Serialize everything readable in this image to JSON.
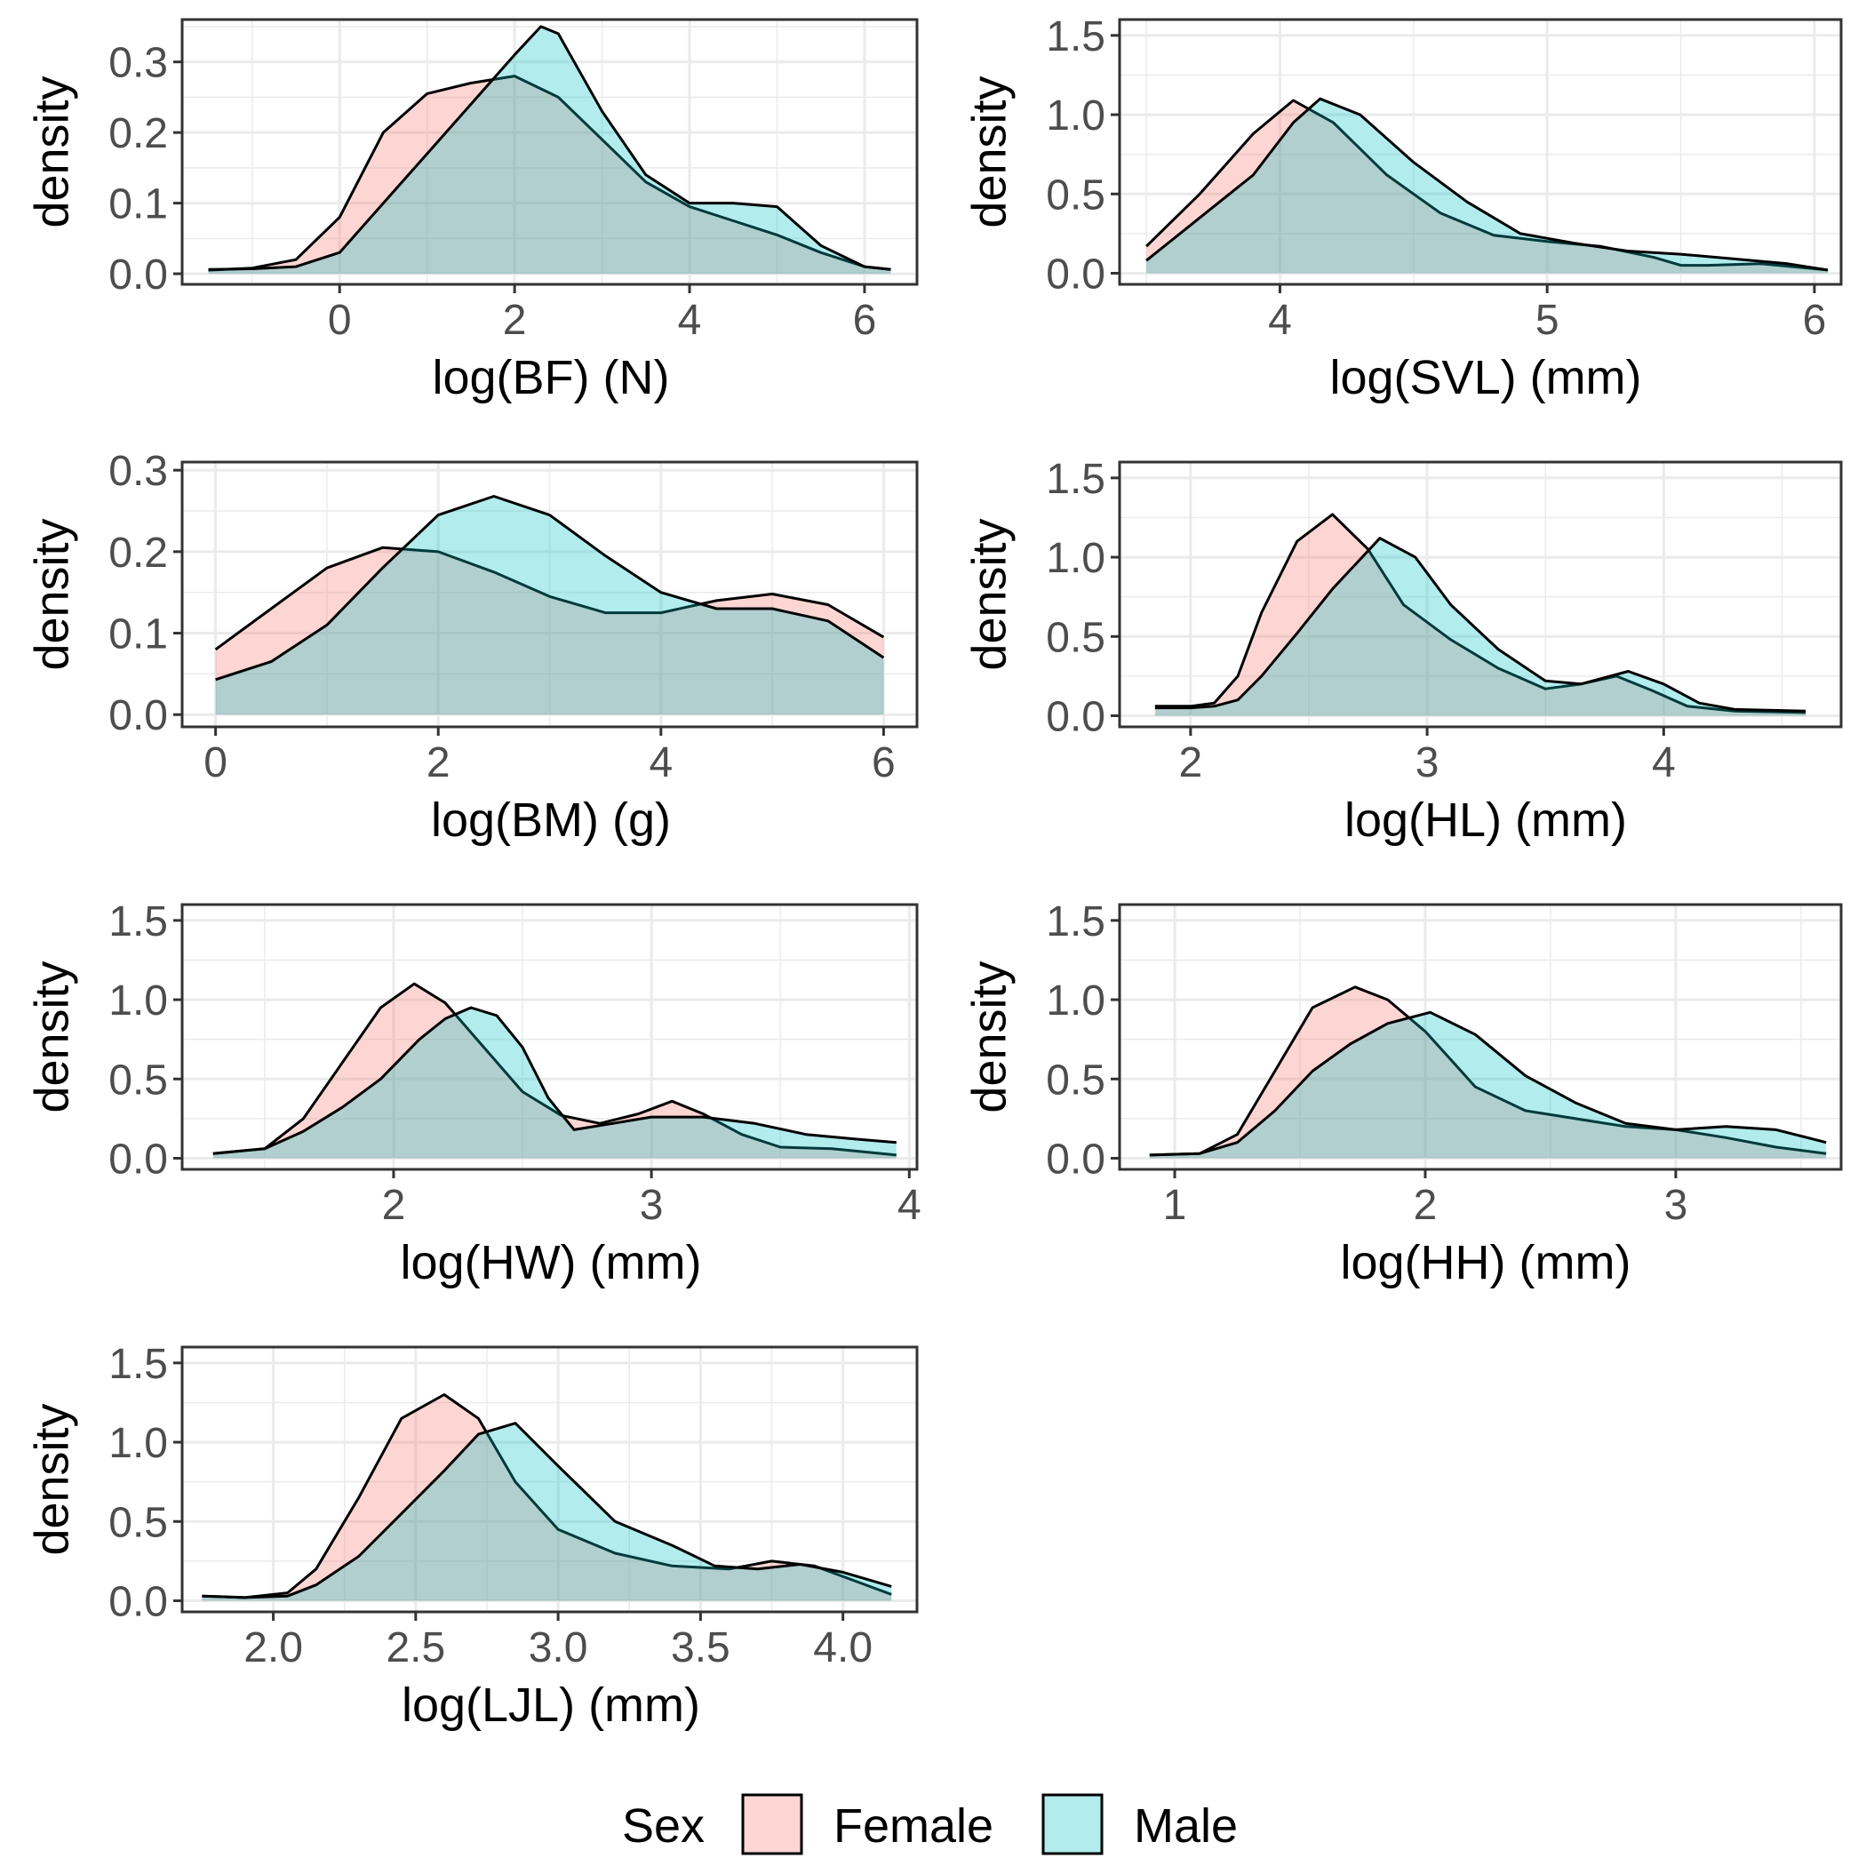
{
  "colors": {
    "female_fill": "#F8766D",
    "male_fill": "#00BFC4",
    "fill_opacity": 0.3,
    "outline": "#000000",
    "grid": "#EBEBEB",
    "panel_border": "#333333",
    "tick_text": "#4D4D4D"
  },
  "legend": {
    "title": "Sex",
    "position": "bottom",
    "items": [
      {
        "label": "Female",
        "color_key": "female_fill"
      },
      {
        "label": "Male",
        "color_key": "male_fill"
      }
    ]
  },
  "chart_data": [
    {
      "type": "area",
      "xlabel": "log(BF) (N)",
      "ylabel": "density",
      "xlim": [
        -1.8,
        6.6
      ],
      "ylim": [
        -0.015,
        0.36
      ],
      "xticks": [
        0,
        2,
        4,
        6
      ],
      "xtick_labels": [
        "0",
        "2",
        "4",
        "6"
      ],
      "xminor": [
        -1,
        1,
        3,
        5
      ],
      "yticks": [
        0.0,
        0.1,
        0.2,
        0.3
      ],
      "ytick_labels": [
        "0.0",
        "0.1",
        "0.2",
        "0.3"
      ],
      "yminor": [
        0.05,
        0.15,
        0.25,
        0.35
      ],
      "grid": true,
      "series": [
        {
          "name": "Female",
          "x": [
            -1.5,
            -1.0,
            -0.5,
            0.0,
            0.5,
            1.0,
            1.5,
            2.0,
            2.5,
            3.0,
            3.5,
            4.0,
            4.5,
            5.0,
            5.5,
            6.0,
            6.3
          ],
          "y": [
            0.005,
            0.008,
            0.02,
            0.08,
            0.2,
            0.255,
            0.27,
            0.28,
            0.25,
            0.19,
            0.13,
            0.095,
            0.075,
            0.055,
            0.03,
            0.01,
            0.006
          ]
        },
        {
          "name": "Male",
          "x": [
            -1.5,
            -1.0,
            -0.5,
            0.0,
            0.5,
            1.0,
            1.5,
            2.0,
            2.3,
            2.5,
            3.0,
            3.5,
            4.0,
            4.5,
            5.0,
            5.5,
            6.0,
            6.3
          ],
          "y": [
            0.006,
            0.007,
            0.01,
            0.03,
            0.1,
            0.17,
            0.24,
            0.31,
            0.35,
            0.34,
            0.23,
            0.14,
            0.1,
            0.1,
            0.095,
            0.04,
            0.01,
            0.006
          ]
        }
      ]
    },
    {
      "type": "area",
      "xlabel": "log(SVL) (mm)",
      "ylabel": "density",
      "xlim": [
        3.4,
        6.1
      ],
      "ylim": [
        -0.07,
        1.6
      ],
      "xticks": [
        4,
        5,
        6
      ],
      "xtick_labels": [
        "4",
        "5",
        "6"
      ],
      "xminor": [
        3.5,
        4.5,
        5.5
      ],
      "yticks": [
        0.0,
        0.5,
        1.0,
        1.5
      ],
      "ytick_labels": [
        "0.0",
        "0.5",
        "1.0",
        "1.5"
      ],
      "yminor": [
        0.25,
        0.75,
        1.25
      ],
      "grid": true,
      "series": [
        {
          "name": "Female",
          "x": [
            3.5,
            3.7,
            3.9,
            4.05,
            4.2,
            4.4,
            4.6,
            4.8,
            5.0,
            5.2,
            5.4,
            5.5,
            5.6,
            5.8,
            6.05
          ],
          "y": [
            0.17,
            0.5,
            0.88,
            1.09,
            0.95,
            0.62,
            0.38,
            0.24,
            0.2,
            0.17,
            0.1,
            0.05,
            0.05,
            0.06,
            0.02
          ]
        },
        {
          "name": "Male",
          "x": [
            3.5,
            3.7,
            3.9,
            4.05,
            4.15,
            4.3,
            4.5,
            4.7,
            4.9,
            5.1,
            5.3,
            5.5,
            5.7,
            5.9,
            6.05
          ],
          "y": [
            0.08,
            0.35,
            0.62,
            0.95,
            1.1,
            1.0,
            0.7,
            0.45,
            0.25,
            0.19,
            0.14,
            0.12,
            0.09,
            0.06,
            0.02
          ]
        }
      ]
    },
    {
      "type": "area",
      "xlabel": "log(BM) (g)",
      "ylabel": "density",
      "xlim": [
        -0.3,
        6.3
      ],
      "ylim": [
        -0.015,
        0.31
      ],
      "xticks": [
        0,
        2,
        4,
        6
      ],
      "xtick_labels": [
        "0",
        "2",
        "4",
        "6"
      ],
      "xminor": [
        1,
        3,
        5
      ],
      "yticks": [
        0.0,
        0.1,
        0.2,
        0.3
      ],
      "ytick_labels": [
        "0.0",
        "0.1",
        "0.2",
        "0.3"
      ],
      "yminor": [
        0.05,
        0.15,
        0.25
      ],
      "grid": true,
      "series": [
        {
          "name": "Female",
          "x": [
            0.0,
            0.5,
            1.0,
            1.5,
            2.0,
            2.5,
            3.0,
            3.5,
            4.0,
            4.5,
            5.0,
            5.5,
            6.0
          ],
          "y": [
            0.08,
            0.13,
            0.18,
            0.205,
            0.2,
            0.175,
            0.145,
            0.125,
            0.125,
            0.14,
            0.148,
            0.135,
            0.095
          ]
        },
        {
          "name": "Male",
          "x": [
            0.0,
            0.5,
            1.0,
            1.5,
            2.0,
            2.5,
            3.0,
            3.5,
            4.0,
            4.5,
            5.0,
            5.5,
            6.0
          ],
          "y": [
            0.043,
            0.065,
            0.11,
            0.18,
            0.245,
            0.268,
            0.245,
            0.195,
            0.15,
            0.13,
            0.13,
            0.115,
            0.07
          ]
        }
      ]
    },
    {
      "type": "area",
      "xlabel": "log(HL) (mm)",
      "ylabel": "density",
      "xlim": [
        1.7,
        4.75
      ],
      "ylim": [
        -0.07,
        1.6
      ],
      "xticks": [
        2,
        3,
        4
      ],
      "xtick_labels": [
        "2",
        "3",
        "4"
      ],
      "xminor": [
        2.5,
        3.5,
        4.5
      ],
      "yticks": [
        0.0,
        0.5,
        1.0,
        1.5
      ],
      "ytick_labels": [
        "0.0",
        "0.5",
        "1.0",
        "1.5"
      ],
      "yminor": [
        0.25,
        0.75,
        1.25
      ],
      "grid": true,
      "series": [
        {
          "name": "Female",
          "x": [
            1.85,
            2.0,
            2.1,
            2.2,
            2.3,
            2.45,
            2.6,
            2.75,
            2.9,
            3.1,
            3.3,
            3.5,
            3.65,
            3.8,
            3.95,
            4.1,
            4.3,
            4.6
          ],
          "y": [
            0.06,
            0.06,
            0.08,
            0.25,
            0.65,
            1.1,
            1.27,
            1.05,
            0.7,
            0.48,
            0.3,
            0.17,
            0.2,
            0.25,
            0.16,
            0.06,
            0.03,
            0.02
          ]
        },
        {
          "name": "Male",
          "x": [
            1.85,
            2.0,
            2.1,
            2.2,
            2.3,
            2.45,
            2.6,
            2.8,
            2.95,
            3.1,
            3.3,
            3.5,
            3.65,
            3.85,
            4.0,
            4.15,
            4.3,
            4.6
          ],
          "y": [
            0.05,
            0.05,
            0.06,
            0.1,
            0.25,
            0.52,
            0.8,
            1.12,
            1.0,
            0.7,
            0.42,
            0.22,
            0.2,
            0.28,
            0.2,
            0.08,
            0.04,
            0.03
          ]
        }
      ]
    },
    {
      "type": "area",
      "xlabel": "log(HW) (mm)",
      "ylabel": "density",
      "xlim": [
        1.18,
        4.03
      ],
      "ylim": [
        -0.07,
        1.6
      ],
      "xticks": [
        2,
        3,
        4
      ],
      "xtick_labels": [
        "2",
        "3",
        "4"
      ],
      "xminor": [
        1.5,
        2.5,
        3.5
      ],
      "yticks": [
        0.0,
        0.5,
        1.0,
        1.5
      ],
      "ytick_labels": [
        "0.0",
        "0.5",
        "1.0",
        "1.5"
      ],
      "yminor": [
        0.25,
        0.75,
        1.25
      ],
      "grid": true,
      "series": [
        {
          "name": "Female",
          "x": [
            1.3,
            1.5,
            1.65,
            1.8,
            1.95,
            2.08,
            2.2,
            2.35,
            2.5,
            2.65,
            2.8,
            2.95,
            3.08,
            3.2,
            3.35,
            3.5,
            3.7,
            3.95
          ],
          "y": [
            0.03,
            0.06,
            0.25,
            0.6,
            0.95,
            1.1,
            0.98,
            0.7,
            0.42,
            0.27,
            0.22,
            0.28,
            0.36,
            0.28,
            0.15,
            0.07,
            0.06,
            0.02
          ]
        },
        {
          "name": "Male",
          "x": [
            1.3,
            1.5,
            1.65,
            1.8,
            1.95,
            2.1,
            2.2,
            2.3,
            2.4,
            2.5,
            2.6,
            2.7,
            2.85,
            3.0,
            3.2,
            3.4,
            3.6,
            3.8,
            3.95
          ],
          "y": [
            0.03,
            0.06,
            0.17,
            0.32,
            0.5,
            0.75,
            0.88,
            0.95,
            0.9,
            0.7,
            0.38,
            0.18,
            0.22,
            0.26,
            0.26,
            0.22,
            0.15,
            0.12,
            0.1
          ]
        }
      ]
    },
    {
      "type": "area",
      "xlabel": "log(HH) (mm)",
      "ylabel": "density",
      "xlim": [
        0.78,
        3.66
      ],
      "ylim": [
        -0.07,
        1.6
      ],
      "xticks": [
        1,
        2,
        3
      ],
      "xtick_labels": [
        "1",
        "2",
        "3"
      ],
      "xminor": [
        1.5,
        2.5,
        3.5
      ],
      "yticks": [
        0.0,
        0.5,
        1.0,
        1.5
      ],
      "ytick_labels": [
        "0.0",
        "0.5",
        "1.0",
        "1.5"
      ],
      "yminor": [
        0.25,
        0.75,
        1.25
      ],
      "grid": true,
      "series": [
        {
          "name": "Female",
          "x": [
            0.9,
            1.1,
            1.25,
            1.4,
            1.55,
            1.72,
            1.85,
            2.0,
            2.2,
            2.4,
            2.6,
            2.8,
            3.0,
            3.2,
            3.4,
            3.6
          ],
          "y": [
            0.02,
            0.03,
            0.15,
            0.55,
            0.95,
            1.08,
            1.0,
            0.8,
            0.45,
            0.3,
            0.25,
            0.2,
            0.18,
            0.13,
            0.07,
            0.03
          ]
        },
        {
          "name": "Male",
          "x": [
            0.9,
            1.1,
            1.25,
            1.4,
            1.55,
            1.7,
            1.85,
            2.02,
            2.2,
            2.4,
            2.6,
            2.8,
            3.0,
            3.2,
            3.4,
            3.6
          ],
          "y": [
            0.02,
            0.03,
            0.1,
            0.3,
            0.55,
            0.72,
            0.85,
            0.92,
            0.78,
            0.52,
            0.35,
            0.22,
            0.18,
            0.2,
            0.18,
            0.1
          ]
        }
      ]
    },
    {
      "type": "area",
      "xlabel": "log(LJL) (mm)",
      "ylabel": "density",
      "xlim": [
        1.68,
        4.26
      ],
      "ylim": [
        -0.07,
        1.6
      ],
      "xticks": [
        2.0,
        2.5,
        3.0,
        3.5,
        4.0
      ],
      "xtick_labels": [
        "2.0",
        "2.5",
        "3.0",
        "3.5",
        "4.0"
      ],
      "xminor": [
        2.25,
        2.75,
        3.25,
        3.75
      ],
      "yticks": [
        0.0,
        0.5,
        1.0,
        1.5
      ],
      "ytick_labels": [
        "0.0",
        "0.5",
        "1.0",
        "1.5"
      ],
      "yminor": [
        0.25,
        0.75,
        1.25
      ],
      "grid": true,
      "series": [
        {
          "name": "Female",
          "x": [
            1.75,
            1.9,
            2.05,
            2.15,
            2.3,
            2.45,
            2.6,
            2.72,
            2.85,
            3.0,
            3.2,
            3.4,
            3.6,
            3.75,
            3.9,
            4.05,
            4.17
          ],
          "y": [
            0.03,
            0.02,
            0.05,
            0.2,
            0.65,
            1.15,
            1.3,
            1.15,
            0.75,
            0.45,
            0.3,
            0.22,
            0.2,
            0.25,
            0.22,
            0.12,
            0.04
          ]
        },
        {
          "name": "Male",
          "x": [
            1.75,
            1.9,
            2.05,
            2.15,
            2.3,
            2.45,
            2.6,
            2.72,
            2.85,
            3.0,
            3.2,
            3.4,
            3.55,
            3.7,
            3.85,
            4.0,
            4.17
          ],
          "y": [
            0.03,
            0.02,
            0.03,
            0.1,
            0.28,
            0.55,
            0.82,
            1.05,
            1.12,
            0.85,
            0.5,
            0.35,
            0.22,
            0.2,
            0.23,
            0.18,
            0.09
          ]
        }
      ]
    }
  ]
}
